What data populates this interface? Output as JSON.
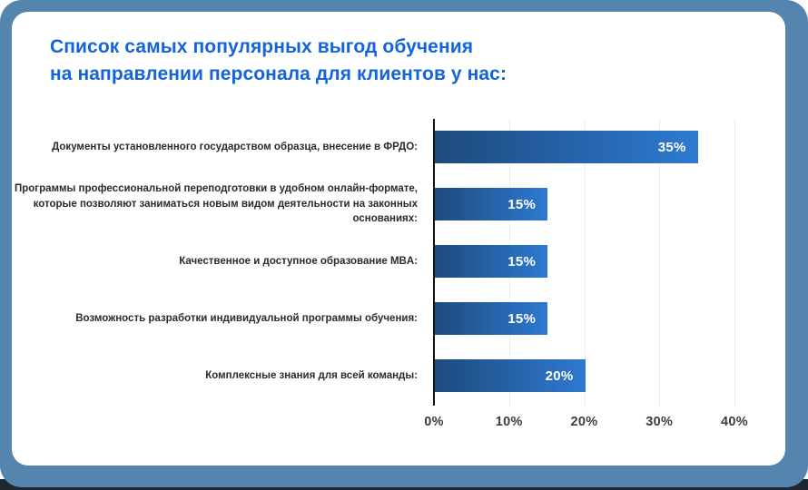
{
  "title": {
    "line1": "Список самых популярных выгод обучения",
    "line2": "на направлении персонала для клиентов у нас:"
  },
  "chart_data": {
    "type": "bar",
    "orientation": "horizontal",
    "title": "Список самых популярных выгод обучения на направлении персонала для клиентов у нас:",
    "categories": [
      "Документы установленного государством образца, внесение в ФРДО:",
      "Программы профессиональной переподготовки в удобном онлайн-формате, которые позволяют заниматься новым видом деятельности на законных основаниях:",
      "Качественное и доступное образование MBA:",
      "Возможность разработки индивидуальной программы обучения:",
      "Комплексные знания для всей команды:"
    ],
    "values": [
      35,
      15,
      15,
      15,
      20
    ],
    "value_labels": [
      "35%",
      "15%",
      "15%",
      "15%",
      "20%"
    ],
    "x_ticks": [
      {
        "value": 0,
        "label": "0%"
      },
      {
        "value": 10,
        "label": "10%"
      },
      {
        "value": 20,
        "label": "20%"
      },
      {
        "value": 30,
        "label": "30%"
      },
      {
        "value": 40,
        "label": "40%"
      }
    ],
    "xlim": [
      0,
      40
    ],
    "grid": "vertical gridlines at 10/20/30/40",
    "legend": "none"
  },
  "colors": {
    "page_background": "#5585ae",
    "card_background": "#ffffff",
    "title": "#1364d8",
    "bar_gradient_start": "#1d4b7d",
    "bar_gradient_end": "#2e79d1",
    "value_label": "#ffffff",
    "axis_line": "#121212",
    "gridline": "#ededed",
    "tick_label": "#3d3d3d",
    "category_label": "#2b2b2b",
    "bottom_edge": "#1f2733"
  }
}
